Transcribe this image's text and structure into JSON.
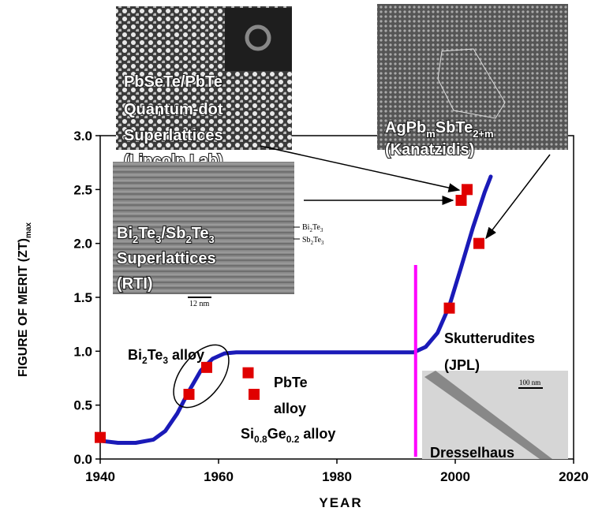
{
  "chart_data": {
    "type": "scatter",
    "xlabel": "YEAR",
    "ylabel": [
      "FIGURE OF MERIT (ZT)",
      "max"
    ],
    "xlim": [
      1940,
      2020
    ],
    "ylim": [
      0,
      3
    ],
    "xticks": [
      1940,
      1960,
      1980,
      2000,
      2020
    ],
    "yticks": [
      {
        "value": 0,
        "label": "0.0"
      },
      {
        "value": 0.5,
        "label": "0.5"
      },
      {
        "value": 1,
        "label": "1.0"
      },
      {
        "value": 1.5,
        "label": "1.5"
      },
      {
        "value": 2,
        "label": "2.0"
      },
      {
        "value": 2.5,
        "label": "2.5"
      },
      {
        "value": 3,
        "label": "3.0"
      }
    ],
    "points": {
      "color": "#e00000",
      "x": [
        1940,
        1955,
        1958,
        1965,
        1966,
        1999,
        2001,
        2002,
        2004
      ],
      "y": [
        0.2,
        0.6,
        0.85,
        0.8,
        0.6,
        1.4,
        2.4,
        2.5,
        2.0
      ]
    },
    "trend": {
      "color": "#1a1ab8",
      "x": [
        1940,
        1943,
        1946,
        1949,
        1951,
        1953,
        1955,
        1957,
        1959,
        1961,
        1963,
        1993,
        1995,
        1997,
        1999,
        2001,
        2003,
        2005,
        2006
      ],
      "y": [
        0.17,
        0.15,
        0.15,
        0.18,
        0.26,
        0.42,
        0.63,
        0.82,
        0.93,
        0.98,
        0.99,
        0.99,
        1.04,
        1.17,
        1.42,
        1.78,
        2.15,
        2.48,
        2.62
      ]
    },
    "marker_line": {
      "color": "#ff00ff",
      "x": 1993.3,
      "y": [
        0.02,
        1.8
      ]
    },
    "annotations": [
      [
        "PbSeTe/PbTe"
      ],
      [
        "Quantum-dot"
      ],
      [
        "Superlattices"
      ],
      [
        "(Lincoln Lab)"
      ],
      [
        "AgPb",
        "m",
        "SbTe",
        "2+m"
      ],
      [
        "(Kanatzidis)"
      ],
      [
        "Bi",
        "2",
        "Te",
        "3",
        "/Sb",
        "2",
        "Te",
        "3"
      ],
      [
        "Superlattices"
      ],
      [
        "(RTI)"
      ],
      [
        "Bi",
        "2",
        "Te",
        "3"
      ],
      [
        "Sb",
        "2",
        "Te",
        "3"
      ],
      [
        "12 nm"
      ],
      [
        "Bi",
        "2",
        "Te",
        "3",
        " alloy"
      ],
      [
        "PbTe"
      ],
      [
        "alloy"
      ],
      [
        "Si",
        "0.8",
        "Ge",
        "0.2",
        " alloy"
      ],
      [
        "Skutterudites"
      ],
      [
        "(JPL)"
      ],
      [
        "100 nm"
      ],
      [
        "Dresselhaus"
      ]
    ]
  }
}
